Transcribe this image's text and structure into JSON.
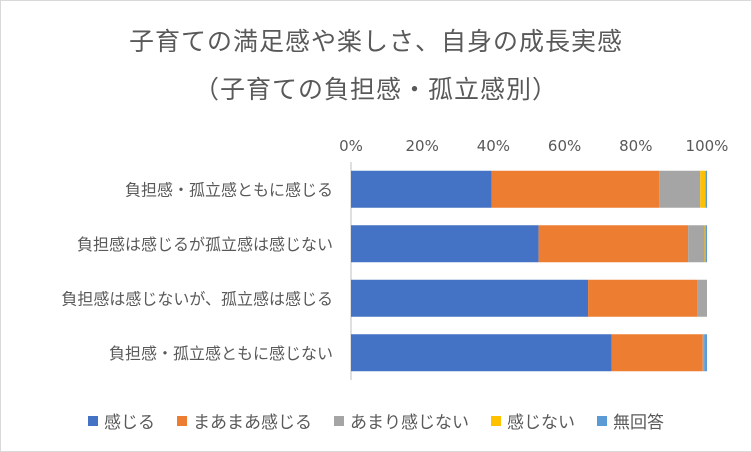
{
  "chart_data": {
    "type": "bar",
    "orientation": "horizontal",
    "stacked": "percent",
    "title": "子育ての満足感や楽しさ、自身の成長実感",
    "subtitle": "（子育ての負担感・孤立感別）",
    "categories": [
      "負担感・孤立感ともに感じる",
      "負担感は感じるが孤立感は感じない",
      "負担感は感じないが、孤立感は感じる",
      "負担感・孤立感ともに感じない"
    ],
    "series": [
      {
        "name": "感じる",
        "color": "#4472c4",
        "values": [
          39.5,
          52.7,
          66.6,
          73.2
        ]
      },
      {
        "name": "まあまあ感じる",
        "color": "#ed7d31",
        "values": [
          47.1,
          42.0,
          30.7,
          25.6
        ]
      },
      {
        "name": "あまり感じない",
        "color": "#a5a5a5",
        "values": [
          11.5,
          4.6,
          2.7,
          0.4
        ]
      },
      {
        "name": "感じない",
        "color": "#ffc000",
        "values": [
          1.5,
          0.3,
          0.0,
          0.0
        ]
      },
      {
        "name": "無回答",
        "color": "#5b9bd5",
        "values": [
          0.4,
          0.4,
          0.0,
          0.8
        ]
      }
    ],
    "xlim": [
      0,
      100
    ],
    "x_ticks": [
      "0%",
      "20%",
      "40%",
      "60%",
      "80%",
      "100%"
    ],
    "axis_position": "top",
    "grid": false,
    "legend_position": "bottom"
  }
}
